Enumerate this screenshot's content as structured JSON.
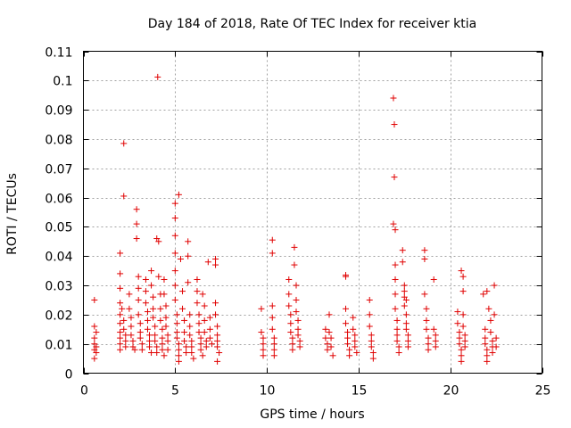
{
  "chart_data": {
    "type": "scatter",
    "title": "Day 184 of 2018, Rate Of TEC Index for receiver ktia",
    "xlabel": "GPS time / hours",
    "ylabel": "ROTI / TECUs",
    "xlim": [
      0,
      25
    ],
    "ylim": [
      0,
      0.11
    ],
    "x_ticks": [
      "0",
      "5",
      "10",
      "15",
      "20",
      "25"
    ],
    "y_ticks": [
      "0",
      "0.01",
      "0.02",
      "0.03",
      "0.04",
      "0.05",
      "0.06",
      "0.07",
      "0.08",
      "0.09",
      "0.1",
      "0.11"
    ],
    "grid": true,
    "marker": "+",
    "color": "#e00000",
    "series": [
      {
        "name": "ROTI",
        "points": [
          [
            0.6,
            0.025
          ],
          [
            0.6,
            0.016
          ],
          [
            0.6,
            0.012
          ],
          [
            0.6,
            0.01
          ],
          [
            0.6,
            0.008
          ],
          [
            0.6,
            0.005
          ],
          [
            0.7,
            0.014
          ],
          [
            0.7,
            0.009
          ],
          [
            0.7,
            0.007
          ],
          [
            2.0,
            0.041
          ],
          [
            2.0,
            0.034
          ],
          [
            2.0,
            0.029
          ],
          [
            2.0,
            0.024
          ],
          [
            2.0,
            0.02
          ],
          [
            2.0,
            0.017
          ],
          [
            2.0,
            0.014
          ],
          [
            2.0,
            0.012
          ],
          [
            2.0,
            0.01
          ],
          [
            2.0,
            0.008
          ],
          [
            2.2,
            0.0785
          ],
          [
            2.2,
            0.0605
          ],
          [
            2.1,
            0.022
          ],
          [
            2.2,
            0.018
          ],
          [
            2.2,
            0.015
          ],
          [
            2.3,
            0.013
          ],
          [
            2.3,
            0.011
          ],
          [
            2.3,
            0.009
          ],
          [
            2.5,
            0.027
          ],
          [
            2.5,
            0.022
          ],
          [
            2.6,
            0.019
          ],
          [
            2.6,
            0.016
          ],
          [
            2.6,
            0.013
          ],
          [
            2.7,
            0.011
          ],
          [
            2.7,
            0.009
          ],
          [
            2.8,
            0.008
          ],
          [
            2.9,
            0.056
          ],
          [
            2.9,
            0.051
          ],
          [
            2.9,
            0.046
          ],
          [
            3.0,
            0.033
          ],
          [
            3.0,
            0.029
          ],
          [
            3.0,
            0.025
          ],
          [
            3.0,
            0.02
          ],
          [
            3.1,
            0.017
          ],
          [
            3.1,
            0.014
          ],
          [
            3.1,
            0.012
          ],
          [
            3.2,
            0.01
          ],
          [
            3.2,
            0.008
          ],
          [
            3.4,
            0.032
          ],
          [
            3.4,
            0.028
          ],
          [
            3.4,
            0.024
          ],
          [
            3.5,
            0.021
          ],
          [
            3.5,
            0.018
          ],
          [
            3.5,
            0.015
          ],
          [
            3.6,
            0.013
          ],
          [
            3.6,
            0.011
          ],
          [
            3.6,
            0.009
          ],
          [
            3.7,
            0.007
          ],
          [
            3.7,
            0.035
          ],
          [
            3.7,
            0.03
          ],
          [
            3.8,
            0.026
          ],
          [
            3.8,
            0.022
          ],
          [
            3.8,
            0.019
          ],
          [
            3.9,
            0.016
          ],
          [
            3.9,
            0.013
          ],
          [
            3.9,
            0.011
          ],
          [
            4.0,
            0.009
          ],
          [
            4.0,
            0.007
          ],
          [
            4.05,
            0.1012
          ],
          [
            4.0,
            0.046
          ],
          [
            4.1,
            0.045
          ],
          [
            4.1,
            0.033
          ],
          [
            4.2,
            0.027
          ],
          [
            4.2,
            0.022
          ],
          [
            4.2,
            0.018
          ],
          [
            4.3,
            0.015
          ],
          [
            4.3,
            0.012
          ],
          [
            4.3,
            0.01
          ],
          [
            4.3,
            0.008
          ],
          [
            4.4,
            0.006
          ],
          [
            4.4,
            0.032
          ],
          [
            4.4,
            0.027
          ],
          [
            4.5,
            0.023
          ],
          [
            4.5,
            0.019
          ],
          [
            4.5,
            0.016
          ],
          [
            4.6,
            0.013
          ],
          [
            4.6,
            0.011
          ],
          [
            4.6,
            0.008
          ],
          [
            5.0,
            0.058
          ],
          [
            5.0,
            0.053
          ],
          [
            5.0,
            0.047
          ],
          [
            5.0,
            0.041
          ],
          [
            5.0,
            0.035
          ],
          [
            5.0,
            0.03
          ],
          [
            5.0,
            0.025
          ],
          [
            5.1,
            0.02
          ],
          [
            5.1,
            0.017
          ],
          [
            5.1,
            0.014
          ],
          [
            5.1,
            0.012
          ],
          [
            5.2,
            0.01
          ],
          [
            5.2,
            0.008
          ],
          [
            5.2,
            0.006
          ],
          [
            5.2,
            0.004
          ],
          [
            5.2,
            0.061
          ],
          [
            5.3,
            0.039
          ],
          [
            5.4,
            0.028
          ],
          [
            5.4,
            0.022
          ],
          [
            5.5,
            0.018
          ],
          [
            5.5,
            0.014
          ],
          [
            5.5,
            0.011
          ],
          [
            5.6,
            0.009
          ],
          [
            5.6,
            0.007
          ],
          [
            5.7,
            0.045
          ],
          [
            5.7,
            0.04
          ],
          [
            5.7,
            0.031
          ],
          [
            5.8,
            0.02
          ],
          [
            5.8,
            0.016
          ],
          [
            5.8,
            0.013
          ],
          [
            5.9,
            0.011
          ],
          [
            5.9,
            0.009
          ],
          [
            5.9,
            0.007
          ],
          [
            6.0,
            0.005
          ],
          [
            6.2,
            0.032
          ],
          [
            6.2,
            0.028
          ],
          [
            6.2,
            0.024
          ],
          [
            6.3,
            0.02
          ],
          [
            6.3,
            0.017
          ],
          [
            6.3,
            0.014
          ],
          [
            6.4,
            0.012
          ],
          [
            6.4,
            0.01
          ],
          [
            6.4,
            0.008
          ],
          [
            6.5,
            0.006
          ],
          [
            6.5,
            0.027
          ],
          [
            6.6,
            0.023
          ],
          [
            6.6,
            0.018
          ],
          [
            6.6,
            0.014
          ],
          [
            6.7,
            0.011
          ],
          [
            6.7,
            0.009
          ],
          [
            6.8,
            0.038
          ],
          [
            6.9,
            0.019
          ],
          [
            6.9,
            0.015
          ],
          [
            6.9,
            0.012
          ],
          [
            7.0,
            0.01
          ],
          [
            7.2,
            0.039
          ],
          [
            7.2,
            0.037
          ],
          [
            7.2,
            0.024
          ],
          [
            7.2,
            0.02
          ],
          [
            7.3,
            0.016
          ],
          [
            7.3,
            0.013
          ],
          [
            7.3,
            0.011
          ],
          [
            7.3,
            0.009
          ],
          [
            7.4,
            0.007
          ],
          [
            7.3,
            0.004
          ],
          [
            9.7,
            0.022
          ],
          [
            9.7,
            0.014
          ],
          [
            9.8,
            0.012
          ],
          [
            9.8,
            0.01
          ],
          [
            9.8,
            0.008
          ],
          [
            9.8,
            0.006
          ],
          [
            10.3,
            0.0455
          ],
          [
            10.3,
            0.041
          ],
          [
            10.3,
            0.023
          ],
          [
            10.3,
            0.019
          ],
          [
            10.3,
            0.015
          ],
          [
            10.4,
            0.012
          ],
          [
            10.4,
            0.01
          ],
          [
            10.4,
            0.008
          ],
          [
            10.4,
            0.006
          ],
          [
            11.2,
            0.032
          ],
          [
            11.2,
            0.027
          ],
          [
            11.2,
            0.023
          ],
          [
            11.3,
            0.02
          ],
          [
            11.3,
            0.017
          ],
          [
            11.3,
            0.014
          ],
          [
            11.4,
            0.012
          ],
          [
            11.4,
            0.01
          ],
          [
            11.4,
            0.008
          ],
          [
            11.5,
            0.043
          ],
          [
            11.5,
            0.037
          ],
          [
            11.6,
            0.03
          ],
          [
            11.6,
            0.025
          ],
          [
            11.6,
            0.021
          ],
          [
            11.7,
            0.018
          ],
          [
            11.7,
            0.015
          ],
          [
            11.7,
            0.013
          ],
          [
            11.8,
            0.011
          ],
          [
            11.8,
            0.009
          ],
          [
            13.2,
            0.015
          ],
          [
            13.2,
            0.012
          ],
          [
            13.3,
            0.01
          ],
          [
            13.3,
            0.008
          ],
          [
            13.4,
            0.02
          ],
          [
            13.4,
            0.014
          ],
          [
            13.5,
            0.012
          ],
          [
            13.5,
            0.009
          ],
          [
            13.6,
            0.006
          ],
          [
            14.3,
            0.033
          ],
          [
            14.3,
            0.0335
          ],
          [
            14.3,
            0.022
          ],
          [
            14.3,
            0.017
          ],
          [
            14.4,
            0.014
          ],
          [
            14.4,
            0.012
          ],
          [
            14.4,
            0.01
          ],
          [
            14.5,
            0.008
          ],
          [
            14.5,
            0.006
          ],
          [
            14.7,
            0.019
          ],
          [
            14.7,
            0.015
          ],
          [
            14.8,
            0.013
          ],
          [
            14.8,
            0.011
          ],
          [
            14.8,
            0.009
          ],
          [
            14.9,
            0.007
          ],
          [
            15.6,
            0.025
          ],
          [
            15.6,
            0.02
          ],
          [
            15.6,
            0.016
          ],
          [
            15.7,
            0.013
          ],
          [
            15.7,
            0.011
          ],
          [
            15.7,
            0.009
          ],
          [
            15.8,
            0.007
          ],
          [
            15.8,
            0.005
          ],
          [
            16.9,
            0.094
          ],
          [
            16.95,
            0.085
          ],
          [
            16.95,
            0.067
          ],
          [
            16.9,
            0.051
          ],
          [
            17.0,
            0.049
          ],
          [
            17.0,
            0.037
          ],
          [
            17.0,
            0.032
          ],
          [
            17.0,
            0.027
          ],
          [
            17.0,
            0.022
          ],
          [
            17.1,
            0.018
          ],
          [
            17.1,
            0.015
          ],
          [
            17.1,
            0.013
          ],
          [
            17.1,
            0.011
          ],
          [
            17.2,
            0.009
          ],
          [
            17.2,
            0.007
          ],
          [
            17.4,
            0.042
          ],
          [
            17.4,
            0.038
          ],
          [
            17.5,
            0.03
          ],
          [
            17.5,
            0.026
          ],
          [
            17.5,
            0.023
          ],
          [
            17.6,
            0.02
          ],
          [
            17.6,
            0.017
          ],
          [
            17.6,
            0.015
          ],
          [
            17.7,
            0.013
          ],
          [
            17.7,
            0.011
          ],
          [
            17.7,
            0.009
          ],
          [
            17.5,
            0.028
          ],
          [
            17.6,
            0.025
          ],
          [
            18.6,
            0.042
          ],
          [
            18.6,
            0.039
          ],
          [
            18.6,
            0.027
          ],
          [
            18.7,
            0.022
          ],
          [
            18.7,
            0.018
          ],
          [
            18.7,
            0.015
          ],
          [
            18.8,
            0.012
          ],
          [
            18.8,
            0.01
          ],
          [
            18.8,
            0.008
          ],
          [
            19.1,
            0.032
          ],
          [
            19.1,
            0.015
          ],
          [
            19.2,
            0.013
          ],
          [
            19.2,
            0.011
          ],
          [
            19.2,
            0.009
          ],
          [
            20.4,
            0.021
          ],
          [
            20.4,
            0.017
          ],
          [
            20.5,
            0.014
          ],
          [
            20.5,
            0.012
          ],
          [
            20.5,
            0.01
          ],
          [
            20.6,
            0.008
          ],
          [
            20.6,
            0.006
          ],
          [
            20.6,
            0.004
          ],
          [
            20.6,
            0.035
          ],
          [
            20.7,
            0.033
          ],
          [
            20.7,
            0.028
          ],
          [
            20.7,
            0.02
          ],
          [
            20.7,
            0.016
          ],
          [
            20.8,
            0.013
          ],
          [
            20.8,
            0.011
          ],
          [
            20.8,
            0.009
          ],
          [
            21.8,
            0.027
          ],
          [
            21.9,
            0.015
          ],
          [
            21.9,
            0.012
          ],
          [
            21.9,
            0.01
          ],
          [
            22.0,
            0.008
          ],
          [
            22.0,
            0.006
          ],
          [
            22.0,
            0.004
          ],
          [
            22.0,
            0.028
          ],
          [
            22.1,
            0.022
          ],
          [
            22.2,
            0.018
          ],
          [
            22.2,
            0.014
          ],
          [
            22.3,
            0.011
          ],
          [
            22.3,
            0.009
          ],
          [
            22.3,
            0.007
          ],
          [
            22.4,
            0.03
          ],
          [
            22.4,
            0.02
          ],
          [
            22.5,
            0.012
          ],
          [
            22.5,
            0.009
          ]
        ]
      }
    ]
  }
}
